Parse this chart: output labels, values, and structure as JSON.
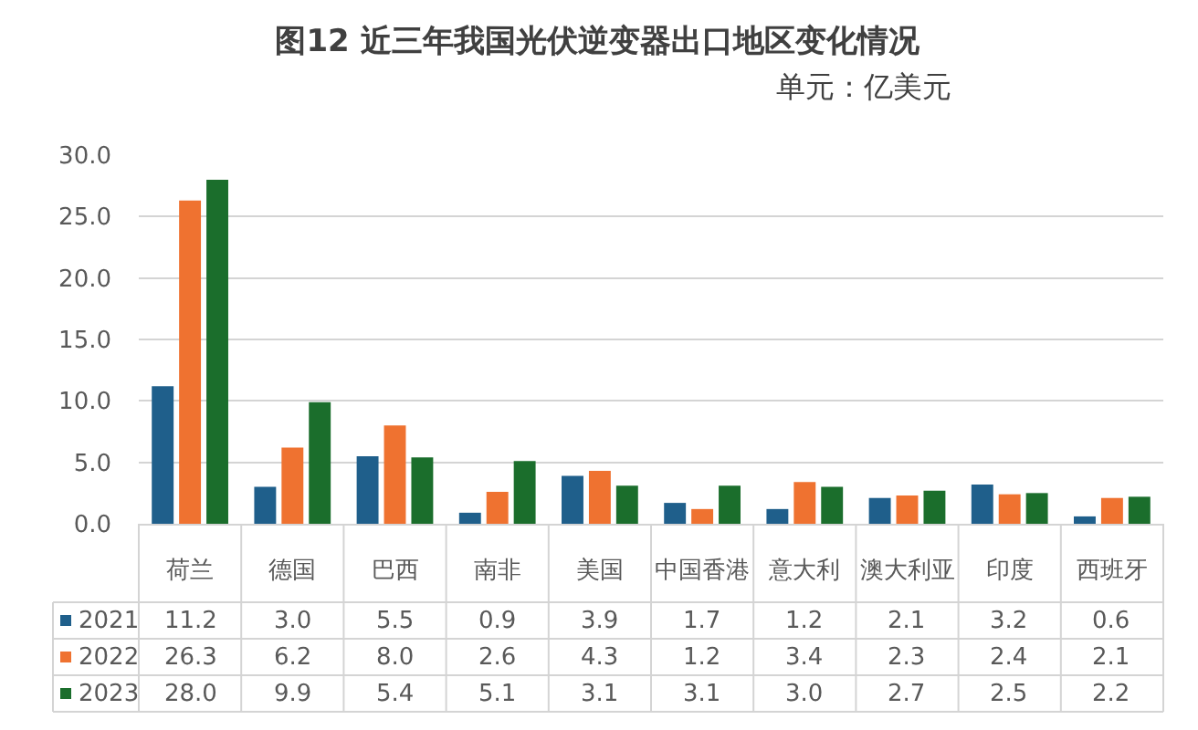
{
  "chart_data": {
    "type": "bar",
    "title": "图12 近三年我国光伏逆变器出口地区变化情况",
    "subtitle": "单元：亿美元",
    "categories": [
      "荷兰",
      "德国",
      "巴西",
      "南非",
      "美国",
      "中国香港",
      "意大利",
      "澳大利亚",
      "印度",
      "西班牙"
    ],
    "series": [
      {
        "name": "2021",
        "color": "#1f5f8b",
        "values": [
          11.2,
          3.0,
          5.5,
          0.9,
          3.9,
          1.7,
          1.2,
          2.1,
          3.2,
          0.6
        ],
        "value_labels": [
          "11.2",
          "3.0",
          "5.5",
          "0.9",
          "3.9",
          "1.7",
          "1.2",
          "2.1",
          "3.2",
          "0.6"
        ]
      },
      {
        "name": "2022",
        "color": "#ef7230",
        "values": [
          26.3,
          6.2,
          8.0,
          2.6,
          4.3,
          1.2,
          3.4,
          2.3,
          2.4,
          2.1
        ],
        "value_labels": [
          "26.3",
          "6.2",
          "8.0",
          "2.6",
          "4.3",
          "1.2",
          "3.4",
          "2.3",
          "2.4",
          "2.1"
        ]
      },
      {
        "name": "2023",
        "color": "#1b6e2c",
        "values": [
          28.0,
          9.9,
          5.4,
          5.1,
          3.1,
          3.1,
          3.0,
          2.7,
          2.5,
          2.2
        ],
        "value_labels": [
          "28.0",
          "9.9",
          "5.4",
          "5.1",
          "3.1",
          "3.1",
          "3.0",
          "2.7",
          "2.5",
          "2.2"
        ]
      }
    ],
    "ylim": [
      0,
      30
    ],
    "yticks": [
      {
        "value": 0,
        "label": "0.0"
      },
      {
        "value": 5,
        "label": "5.0"
      },
      {
        "value": 10,
        "label": "10.0"
      },
      {
        "value": 15,
        "label": "15.0"
      },
      {
        "value": 20,
        "label": "20.0"
      },
      {
        "value": 25,
        "label": "25.0"
      },
      {
        "value": 30,
        "label": "30.0"
      }
    ],
    "grid": "y",
    "legend": "bottom"
  }
}
